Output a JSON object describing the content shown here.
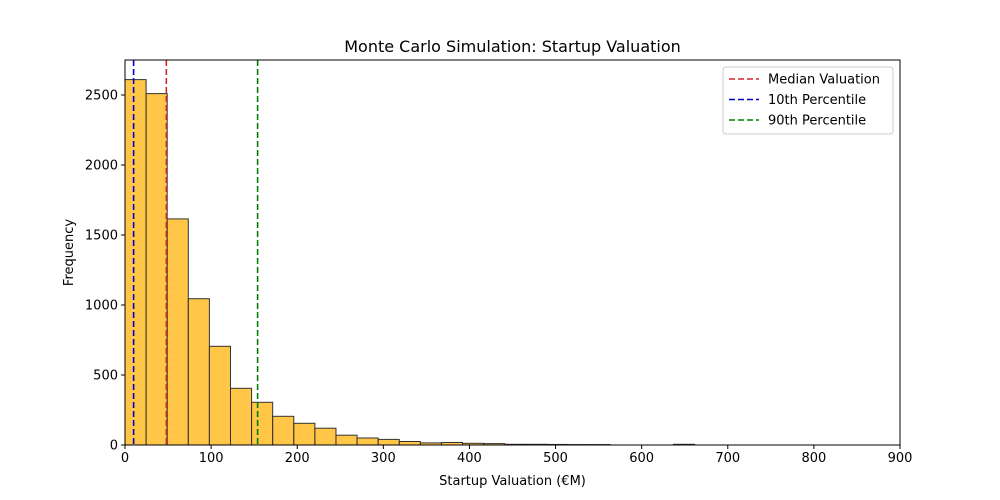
{
  "chart_data": {
    "type": "bar",
    "title": "Monte Carlo Simulation: Startup Valuation",
    "xlabel": "Startup Valuation (€M)",
    "ylabel": "Frequency",
    "xlim": [
      0,
      900
    ],
    "ylim": [
      0,
      2750
    ],
    "xticks": [
      0,
      100,
      200,
      300,
      400,
      500,
      600,
      700,
      800,
      900
    ],
    "yticks": [
      0,
      500,
      1000,
      1500,
      2000,
      2500
    ],
    "grid": false,
    "legend_position": "top-right",
    "bar_color": "#ffb000",
    "bar_edge_color": "#333333",
    "bins": [
      {
        "x0": 0.0,
        "x1": 24.5,
        "value": 2610
      },
      {
        "x0": 24.5,
        "x1": 49.0,
        "value": 2510
      },
      {
        "x0": 49.0,
        "x1": 73.5,
        "value": 1615
      },
      {
        "x0": 73.5,
        "x1": 98.0,
        "value": 1045
      },
      {
        "x0": 98.0,
        "x1": 122.5,
        "value": 705
      },
      {
        "x0": 122.5,
        "x1": 147.0,
        "value": 405
      },
      {
        "x0": 147.0,
        "x1": 171.5,
        "value": 305
      },
      {
        "x0": 171.5,
        "x1": 196.0,
        "value": 205
      },
      {
        "x0": 196.0,
        "x1": 220.5,
        "value": 155
      },
      {
        "x0": 220.5,
        "x1": 245.0,
        "value": 120
      },
      {
        "x0": 245.0,
        "x1": 269.5,
        "value": 70
      },
      {
        "x0": 269.5,
        "x1": 294.0,
        "value": 50
      },
      {
        "x0": 294.0,
        "x1": 318.5,
        "value": 40
      },
      {
        "x0": 318.5,
        "x1": 343.0,
        "value": 25
      },
      {
        "x0": 343.0,
        "x1": 367.5,
        "value": 15
      },
      {
        "x0": 367.5,
        "x1": 392.0,
        "value": 18
      },
      {
        "x0": 392.0,
        "x1": 416.5,
        "value": 12
      },
      {
        "x0": 416.5,
        "x1": 441.0,
        "value": 10
      },
      {
        "x0": 441.0,
        "x1": 465.5,
        "value": 5
      },
      {
        "x0": 465.5,
        "x1": 490.0,
        "value": 5
      },
      {
        "x0": 490.0,
        "x1": 514.5,
        "value": 4
      },
      {
        "x0": 514.5,
        "x1": 539.0,
        "value": 3
      },
      {
        "x0": 539.0,
        "x1": 563.5,
        "value": 3
      },
      {
        "x0": 563.5,
        "x1": 588.0,
        "value": 0
      },
      {
        "x0": 588.0,
        "x1": 612.5,
        "value": 0
      },
      {
        "x0": 612.5,
        "x1": 637.0,
        "value": 0
      },
      {
        "x0": 637.0,
        "x1": 661.5,
        "value": 5
      },
      {
        "x0": 661.5,
        "x1": 686.0,
        "value": 0
      },
      {
        "x0": 686.0,
        "x1": 710.5,
        "value": 0
      },
      {
        "x0": 710.5,
        "x1": 735.0,
        "value": 0
      },
      {
        "x0": 735.0,
        "x1": 759.5,
        "value": 0
      },
      {
        "x0": 759.5,
        "x1": 784.0,
        "value": 0
      },
      {
        "x0": 784.0,
        "x1": 808.5,
        "value": 0
      },
      {
        "x0": 808.5,
        "x1": 833.0,
        "value": 0
      },
      {
        "x0": 833.0,
        "x1": 857.5,
        "value": 0
      },
      {
        "x0": 857.5,
        "x1": 882.0,
        "value": 0
      },
      {
        "x0": 882.0,
        "x1": 906.5,
        "value": 0
      }
    ],
    "vlines": [
      {
        "name": "Median Valuation",
        "x": 48,
        "color": "#d62728"
      },
      {
        "name": "10th Percentile",
        "x": 10,
        "color": "#0000cc"
      },
      {
        "name": "90th Percentile",
        "x": 154,
        "color": "#008000"
      }
    ]
  }
}
